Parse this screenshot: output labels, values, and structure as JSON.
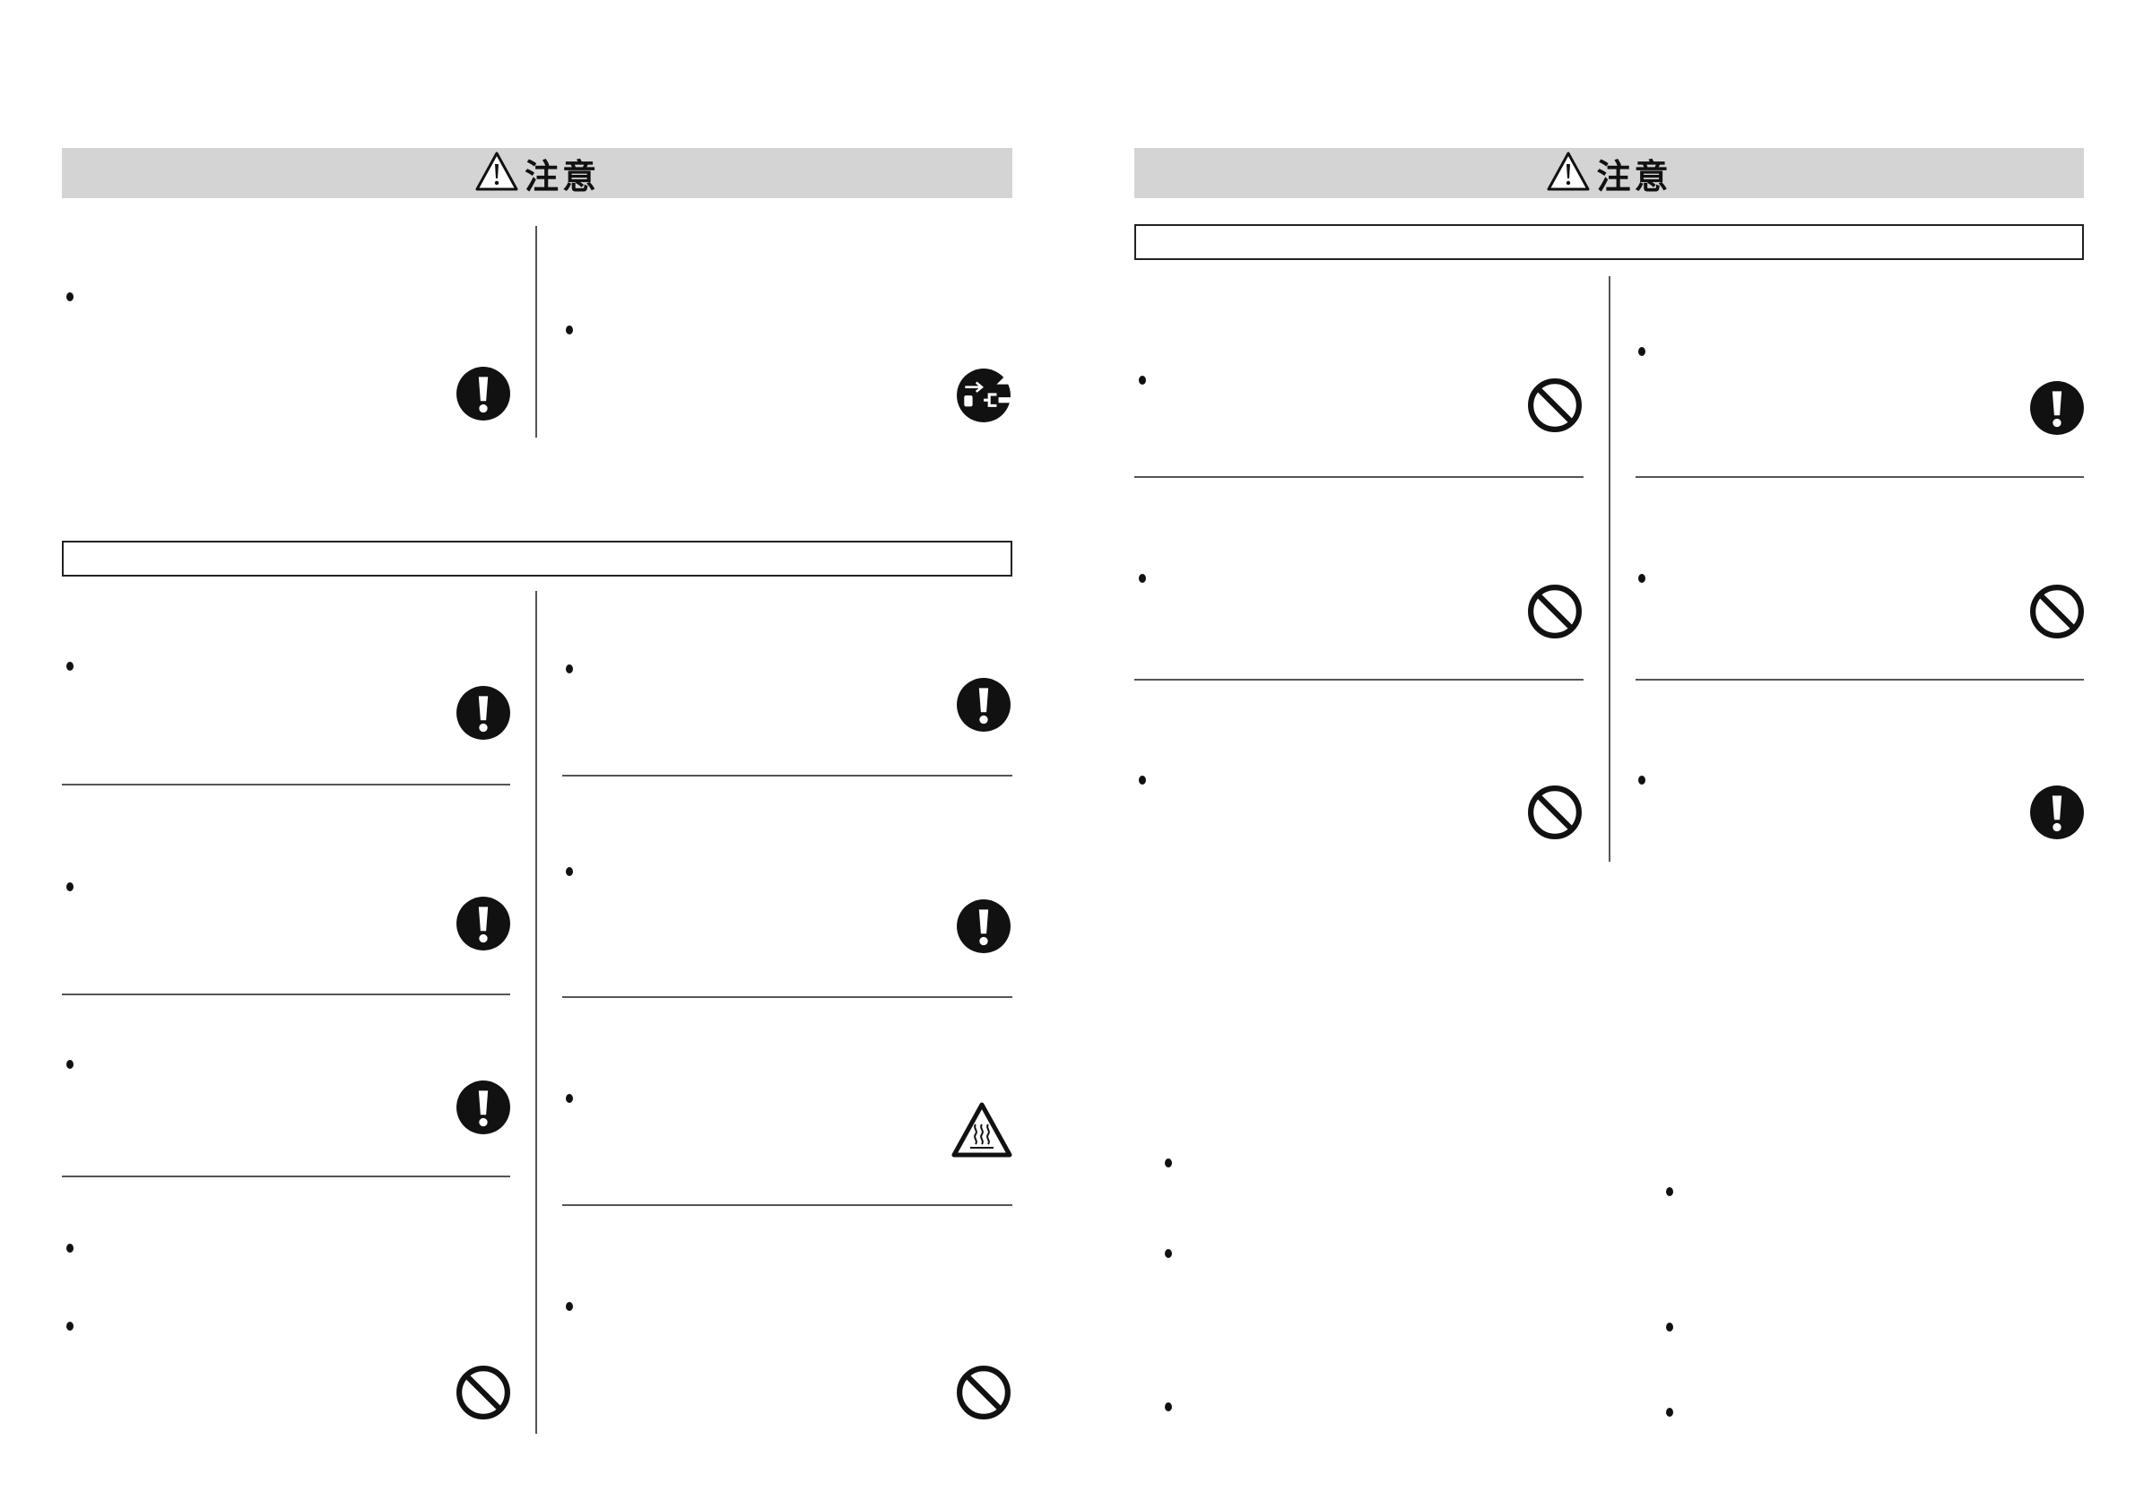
{
  "pages": [
    {
      "banner": {
        "icon": "warning-triangle-icon",
        "title": "注意"
      }
    },
    {
      "banner": {
        "icon": "warning-triangle-icon",
        "title": "注意"
      }
    }
  ],
  "icon_legend": {
    "mandatory": "exclamation-circle-icon",
    "prohibited": "prohibition-circle-icon",
    "unplug": "unplug-power-icon",
    "hot": "hot-surface-warning-icon"
  }
}
